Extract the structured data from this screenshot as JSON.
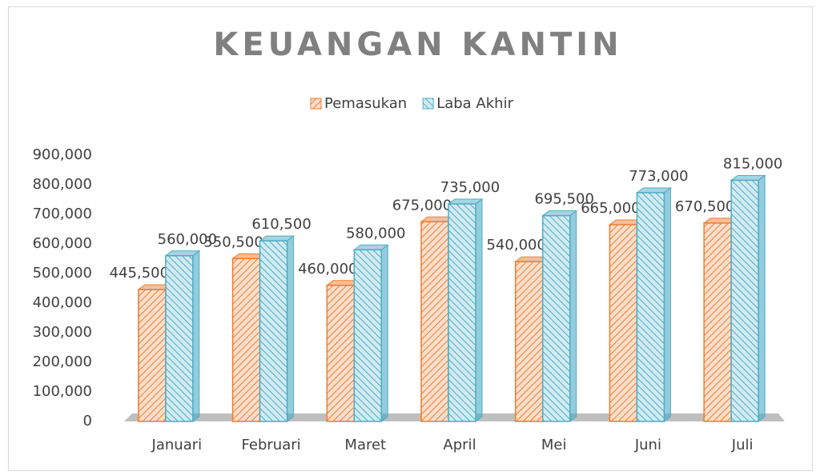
{
  "chart_data": {
    "type": "bar3d",
    "title": "KEUANGAN KANTIN",
    "categories": [
      "Januari",
      "Februari",
      "Maret",
      "April",
      "Mei",
      "Juni",
      "Juli"
    ],
    "series": [
      {
        "name": "Pemasukan",
        "color": "#ed7d31",
        "values": [
          445500,
          550500,
          460000,
          675000,
          540000,
          665000,
          670500
        ],
        "value_labels": [
          "445,500",
          "550,500",
          "460,000",
          "675,000",
          "540,000",
          "665,000",
          "670,500"
        ]
      },
      {
        "name": "Laba Akhir",
        "color": "#4bacc6",
        "values": [
          560000,
          610500,
          580000,
          735000,
          695500,
          773000,
          815000
        ],
        "value_labels": [
          "560,000",
          "610,500",
          "580,000",
          "735,000",
          "695,500",
          "773,000",
          "815,000"
        ]
      }
    ],
    "ylim": [
      0,
      900000
    ],
    "yticks": [
      0,
      {
        "value": 100000,
        "label": "100,000"
      },
      {
        "value": 200000,
        "label": "200,000"
      },
      {
        "value": 300000,
        "label": "300,000"
      },
      {
        "value": 400000,
        "label": "400,000"
      },
      {
        "value": 500000,
        "label": "500,000"
      },
      {
        "value": 600000,
        "label": "600,000"
      },
      {
        "value": 700000,
        "label": "700,000"
      },
      {
        "value": 800000,
        "label": "800,000"
      },
      {
        "value": 900000,
        "label": "900,000"
      }
    ],
    "legend": "top",
    "grid": false
  }
}
